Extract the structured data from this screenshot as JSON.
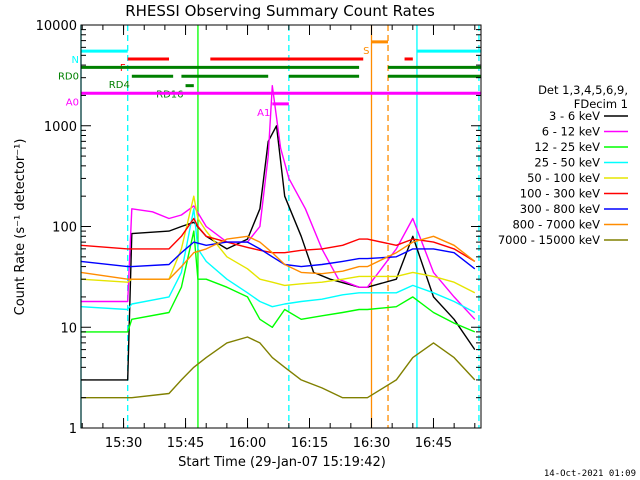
{
  "chart_data": {
    "type": "line",
    "title": "RHESSI Observing Summary Count Rates",
    "xlabel": "Start Time (29-Jan-07 15:19:42)",
    "ylabel": "Count Rate (s⁻¹ detector⁻¹)",
    "y_scale": "log",
    "ylim": [
      1,
      10000
    ],
    "xlim": [
      "15:19:42",
      "16:56:30"
    ],
    "x_ticks": [
      "15:30",
      "15:45",
      "16:00",
      "16:15",
      "16:30",
      "16:45"
    ],
    "y_ticks": [
      "1",
      "10",
      "100",
      "1000",
      "10000"
    ],
    "legend_title": [
      "Det 1,3,4,5,6,9,",
      "FDecim 1"
    ],
    "legend_position": "right",
    "footer": "14-Oct-2021 01:09",
    "series": [
      {
        "name": "3 - 6 keV",
        "color": "#000000",
        "points": [
          [
            "15:19:42",
            3
          ],
          [
            "15:31",
            3
          ],
          [
            "15:32",
            85
          ],
          [
            "15:41",
            90
          ],
          [
            "15:44",
            100
          ],
          [
            "15:47",
            110
          ],
          [
            "15:50",
            80
          ],
          [
            "15:55",
            60
          ],
          [
            "16:00",
            75
          ],
          [
            "16:03",
            150
          ],
          [
            "16:05",
            700
          ],
          [
            "16:07",
            1000
          ],
          [
            "16:09",
            200
          ],
          [
            "16:13",
            80
          ],
          [
            "16:16",
            35
          ],
          [
            "16:20",
            30
          ],
          [
            "16:27",
            25
          ],
          [
            "16:29",
            25
          ],
          [
            "16:36",
            30
          ],
          [
            "16:40",
            80
          ],
          [
            "16:45",
            20
          ],
          [
            "16:50",
            12
          ],
          [
            "16:55",
            6
          ]
        ]
      },
      {
        "name": "6 - 12 keV",
        "color": "#ff00ff",
        "points": [
          [
            "15:19:42",
            18
          ],
          [
            "15:31",
            18
          ],
          [
            "15:32",
            150
          ],
          [
            "15:37",
            140
          ],
          [
            "15:41",
            120
          ],
          [
            "15:44",
            130
          ],
          [
            "15:47",
            160
          ],
          [
            "15:50",
            100
          ],
          [
            "15:55",
            70
          ],
          [
            "16:00",
            70
          ],
          [
            "16:03",
            100
          ],
          [
            "16:05",
            500
          ],
          [
            "16:06",
            2500
          ],
          [
            "16:08",
            600
          ],
          [
            "16:10",
            300
          ],
          [
            "16:14",
            150
          ],
          [
            "16:18",
            60
          ],
          [
            "16:22",
            30
          ],
          [
            "16:27",
            25
          ],
          [
            "16:29",
            25
          ],
          [
            "16:36",
            60
          ],
          [
            "16:40",
            120
          ],
          [
            "16:45",
            35
          ],
          [
            "16:50",
            20
          ],
          [
            "16:55",
            12
          ]
        ]
      },
      {
        "name": "12 - 25 keV",
        "color": "#00ff00",
        "points": [
          [
            "15:19:42",
            9
          ],
          [
            "15:31",
            9
          ],
          [
            "15:32",
            12
          ],
          [
            "15:41",
            14
          ],
          [
            "15:44",
            25
          ],
          [
            "15:47",
            90
          ],
          [
            "15:48",
            30
          ],
          [
            "15:50",
            30
          ],
          [
            "15:55",
            25
          ],
          [
            "16:00",
            20
          ],
          [
            "16:03",
            12
          ],
          [
            "16:06",
            10
          ],
          [
            "16:09",
            15
          ],
          [
            "16:13",
            12
          ],
          [
            "16:18",
            13
          ],
          [
            "16:23",
            14
          ],
          [
            "16:27",
            15
          ],
          [
            "16:29",
            15
          ],
          [
            "16:36",
            16
          ],
          [
            "16:40",
            20
          ],
          [
            "16:45",
            14
          ],
          [
            "16:50",
            11
          ],
          [
            "16:55",
            9
          ]
        ]
      },
      {
        "name": "25 - 50 keV",
        "color": "#00ffff",
        "points": [
          [
            "15:19:42",
            16
          ],
          [
            "15:31",
            15
          ],
          [
            "15:32",
            17
          ],
          [
            "15:41",
            20
          ],
          [
            "15:44",
            35
          ],
          [
            "15:47",
            150
          ],
          [
            "15:48",
            60
          ],
          [
            "15:50",
            45
          ],
          [
            "15:55",
            30
          ],
          [
            "16:00",
            22
          ],
          [
            "16:03",
            18
          ],
          [
            "16:06",
            16
          ],
          [
            "16:09",
            17
          ],
          [
            "16:13",
            18
          ],
          [
            "16:18",
            19
          ],
          [
            "16:23",
            21
          ],
          [
            "16:27",
            22
          ],
          [
            "16:29",
            22
          ],
          [
            "16:36",
            22
          ],
          [
            "16:40",
            26
          ],
          [
            "16:45",
            22
          ],
          [
            "16:50",
            18
          ],
          [
            "16:55",
            14
          ]
        ]
      },
      {
        "name": "50 - 100 keV",
        "color": "#e5e500",
        "points": [
          [
            "15:19:42",
            30
          ],
          [
            "15:31",
            28
          ],
          [
            "15:32",
            30
          ],
          [
            "15:41",
            30
          ],
          [
            "15:44",
            60
          ],
          [
            "15:47",
            200
          ],
          [
            "15:48",
            120
          ],
          [
            "15:50",
            90
          ],
          [
            "15:55",
            50
          ],
          [
            "16:00",
            38
          ],
          [
            "16:03",
            30
          ],
          [
            "16:06",
            28
          ],
          [
            "16:09",
            26
          ],
          [
            "16:13",
            27
          ],
          [
            "16:18",
            28
          ],
          [
            "16:23",
            30
          ],
          [
            "16:27",
            32
          ],
          [
            "16:29",
            32
          ],
          [
            "16:36",
            32
          ],
          [
            "16:40",
            35
          ],
          [
            "16:45",
            32
          ],
          [
            "16:50",
            28
          ],
          [
            "16:55",
            22
          ]
        ]
      },
      {
        "name": "100 - 300 keV",
        "color": "#ff0000",
        "points": [
          [
            "15:19:42",
            65
          ],
          [
            "15:31",
            60
          ],
          [
            "15:32",
            60
          ],
          [
            "15:41",
            60
          ],
          [
            "15:44",
            80
          ],
          [
            "15:47",
            120
          ],
          [
            "15:48",
            100
          ],
          [
            "15:50",
            80
          ],
          [
            "15:55",
            70
          ],
          [
            "16:00",
            62
          ],
          [
            "16:03",
            58
          ],
          [
            "16:06",
            55
          ],
          [
            "16:09",
            55
          ],
          [
            "16:13",
            58
          ],
          [
            "16:18",
            60
          ],
          [
            "16:23",
            65
          ],
          [
            "16:27",
            75
          ],
          [
            "16:29",
            75
          ],
          [
            "16:36",
            65
          ],
          [
            "16:40",
            75
          ],
          [
            "16:45",
            70
          ],
          [
            "16:50",
            60
          ],
          [
            "16:55",
            45
          ]
        ]
      },
      {
        "name": "300 - 800 keV",
        "color": "#0000ff",
        "points": [
          [
            "15:19:42",
            45
          ],
          [
            "15:31",
            40
          ],
          [
            "15:32",
            40
          ],
          [
            "15:41",
            42
          ],
          [
            "15:44",
            55
          ],
          [
            "15:47",
            70
          ],
          [
            "15:50",
            65
          ],
          [
            "15:55",
            70
          ],
          [
            "16:00",
            70
          ],
          [
            "16:03",
            60
          ],
          [
            "16:06",
            50
          ],
          [
            "16:09",
            42
          ],
          [
            "16:13",
            40
          ],
          [
            "16:18",
            42
          ],
          [
            "16:23",
            45
          ],
          [
            "16:27",
            48
          ],
          [
            "16:29",
            48
          ],
          [
            "16:36",
            50
          ],
          [
            "16:40",
            60
          ],
          [
            "16:45",
            60
          ],
          [
            "16:50",
            55
          ],
          [
            "16:55",
            38
          ]
        ]
      },
      {
        "name": "800 - 7000 keV",
        "color": "#ff8c00",
        "points": [
          [
            "15:19:42",
            35
          ],
          [
            "15:31",
            30
          ],
          [
            "15:32",
            30
          ],
          [
            "15:41",
            30
          ],
          [
            "15:44",
            40
          ],
          [
            "15:47",
            55
          ],
          [
            "15:50",
            60
          ],
          [
            "15:55",
            75
          ],
          [
            "16:00",
            80
          ],
          [
            "16:03",
            70
          ],
          [
            "16:06",
            55
          ],
          [
            "16:09",
            42
          ],
          [
            "16:13",
            35
          ],
          [
            "16:18",
            34
          ],
          [
            "16:23",
            36
          ],
          [
            "16:27",
            40
          ],
          [
            "16:29",
            40
          ],
          [
            "16:36",
            55
          ],
          [
            "16:40",
            70
          ],
          [
            "16:45",
            80
          ],
          [
            "16:50",
            65
          ],
          [
            "16:55",
            45
          ]
        ]
      },
      {
        "name": "7000 - 15000 keV",
        "color": "#808000",
        "points": [
          [
            "15:19:42",
            2
          ],
          [
            "15:31",
            2
          ],
          [
            "15:32",
            2
          ],
          [
            "15:41",
            2.2
          ],
          [
            "15:44",
            3
          ],
          [
            "15:47",
            4
          ],
          [
            "15:50",
            5
          ],
          [
            "15:55",
            7
          ],
          [
            "16:00",
            8
          ],
          [
            "16:03",
            7
          ],
          [
            "16:06",
            5
          ],
          [
            "16:09",
            4
          ],
          [
            "16:13",
            3
          ],
          [
            "16:18",
            2.5
          ],
          [
            "16:23",
            2
          ],
          [
            "16:27",
            2
          ],
          [
            "16:29",
            2
          ],
          [
            "16:36",
            3
          ],
          [
            "16:40",
            5
          ],
          [
            "16:45",
            7
          ],
          [
            "16:50",
            5
          ],
          [
            "16:55",
            3
          ]
        ]
      }
    ],
    "markers": [
      {
        "label": "N",
        "color": "#00ffff",
        "y": 5500,
        "segments": [
          [
            "15:19:42",
            "15:31"
          ],
          [
            "16:41",
            "16:56:30"
          ]
        ]
      },
      {
        "label": "F",
        "color": "#ff0000",
        "y": 4600,
        "segments": [
          [
            "15:31",
            "15:41"
          ],
          [
            "15:51",
            "16:28"
          ],
          [
            "16:38",
            "16:40"
          ]
        ]
      },
      {
        "label": "RD0",
        "color": "#008000",
        "y": 3800,
        "segments": [
          [
            "15:19:42",
            "16:27"
          ],
          [
            "16:34",
            "16:56:30"
          ]
        ]
      },
      {
        "label": "RD4",
        "color": "#008000",
        "y": 3100,
        "segments": [
          [
            "15:32",
            "15:42"
          ],
          [
            "15:44",
            "16:05"
          ],
          [
            "16:10",
            "16:27"
          ],
          [
            "16:34",
            "16:56:30"
          ]
        ]
      },
      {
        "label": "RD16",
        "color": "#008000",
        "y": 2500,
        "segments": [
          [
            "15:45",
            "15:47"
          ]
        ]
      },
      {
        "label": "A0",
        "color": "#ff00ff",
        "y": 2100,
        "segments": [
          [
            "15:19:42",
            "16:56:30"
          ]
        ]
      },
      {
        "label": "A1",
        "color": "#ff00ff",
        "y": 1650,
        "segments": [
          [
            "16:06",
            "16:10"
          ]
        ]
      },
      {
        "label": "S",
        "color": "#ff8c00",
        "y": 6800,
        "segments": [
          [
            "16:30",
            "16:34"
          ]
        ]
      }
    ],
    "vlines": [
      {
        "x": "15:19:42",
        "color": "#00ffff",
        "style": "solid"
      },
      {
        "x": "15:31",
        "color": "#00ffff",
        "style": "dashed"
      },
      {
        "x": "15:48",
        "color": "#00ff00",
        "style": "solid"
      },
      {
        "x": "16:10",
        "color": "#00ffff",
        "style": "dashed"
      },
      {
        "x": "16:30",
        "color": "#ff8c00",
        "style": "solid"
      },
      {
        "x": "16:34",
        "color": "#ff8c00",
        "style": "dashed"
      },
      {
        "x": "16:41",
        "color": "#00ffff",
        "style": "solid"
      },
      {
        "x": "16:56",
        "color": "#00ffff",
        "style": "dashed"
      }
    ]
  }
}
